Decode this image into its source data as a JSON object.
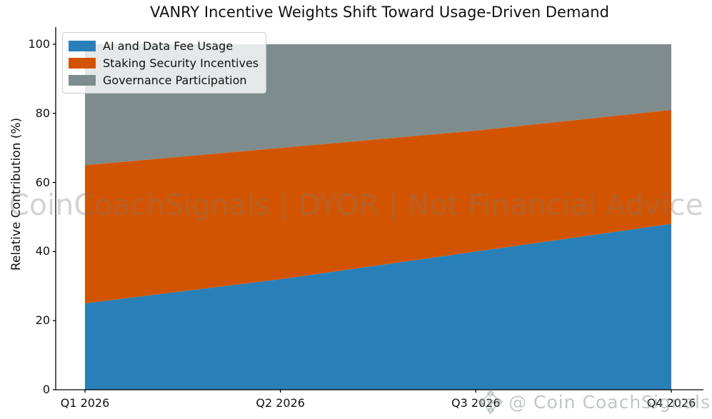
{
  "watermarks": {
    "center": "CoinCoachSignals | DYOR | Not Financial Advice",
    "bottom_right": "@ Coin CoachSignals"
  },
  "chart_data": {
    "type": "area",
    "stacked": true,
    "normalized_percent": true,
    "title": "VANRY Incentive Weights Shift Toward Usage-Driven Demand",
    "xlabel": "",
    "ylabel": "Relative Contribution (%)",
    "categories": [
      "Q1 2026",
      "Q2 2026",
      "Q3 2026",
      "Q4 2026"
    ],
    "series": [
      {
        "name": "AI and Data Fee Usage",
        "color": "#2980b9",
        "values": [
          25,
          32,
          40,
          48
        ]
      },
      {
        "name": "Staking Security Incentives",
        "color": "#d35400",
        "values": [
          40,
          38,
          35,
          33
        ]
      },
      {
        "name": "Governance Participation",
        "color": "#7f8c8d",
        "values": [
          35,
          30,
          25,
          19
        ]
      }
    ],
    "yticks": [
      0,
      20,
      40,
      60,
      80,
      100
    ],
    "ylim": [
      0,
      105
    ],
    "grid": false,
    "legend_position": "upper-left",
    "axis_color": "#000000"
  }
}
